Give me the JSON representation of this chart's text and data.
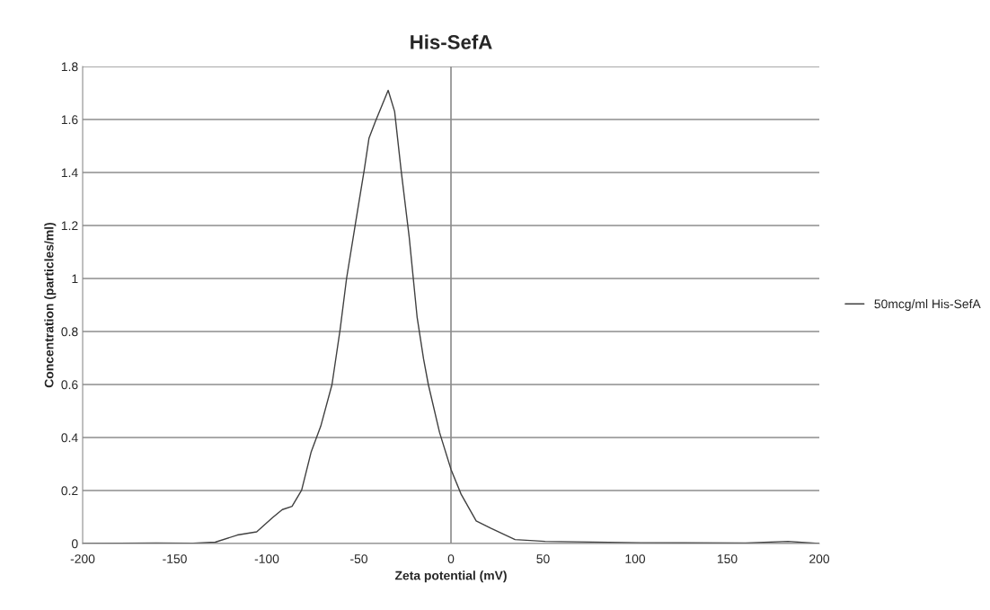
{
  "chart_data": {
    "type": "line",
    "title": "His-SefA",
    "xlabel": "Zeta potential (mV)",
    "ylabel": "Concentration (particles/ml)",
    "xlim": [
      -200,
      200
    ],
    "xticks": [
      -200,
      -150,
      -100,
      -50,
      0,
      50,
      100,
      150,
      200
    ],
    "ylim": [
      0,
      1.8
    ],
    "yticks": [
      0,
      0.2,
      0.4,
      0.6,
      0.8,
      1,
      1.2,
      1.4,
      1.6,
      1.8
    ],
    "grid": "y",
    "legend": "right",
    "marker": "none",
    "line_style": "solid",
    "ref_lines": [
      {
        "axis": "x",
        "value": 0,
        "color": "#8c8c8c"
      }
    ],
    "series": [
      {
        "name": "50mcg/ml His-SefA",
        "color": "#404040",
        "x": [
          -200,
          -160,
          -140,
          -128,
          -116,
          -105.5,
          -96.8,
          -91.6,
          -86.3,
          -81.1,
          -75.9,
          -70.7,
          -64.6,
          -60.2,
          -56.7,
          -51.9,
          -47.1,
          -44.5,
          -41,
          -34.1,
          -30.6,
          -27.1,
          -22.7,
          -18.4,
          -14.9,
          -12.3,
          -6.2,
          0,
          5.5,
          13.7,
          21.8,
          34.8,
          51.1,
          103,
          160,
          183,
          200
        ],
        "values": [
          0,
          0.002,
          0.001,
          0.005,
          0.032,
          0.044,
          0.098,
          0.128,
          0.14,
          0.201,
          0.346,
          0.443,
          0.6,
          0.807,
          1.0,
          1.206,
          1.41,
          1.53,
          1.593,
          1.71,
          1.63,
          1.41,
          1.157,
          0.855,
          0.697,
          0.6,
          0.419,
          0.28,
          0.186,
          0.085,
          0.057,
          0.015,
          0.008,
          0.003,
          0.002,
          0.008,
          0
        ]
      }
    ]
  }
}
